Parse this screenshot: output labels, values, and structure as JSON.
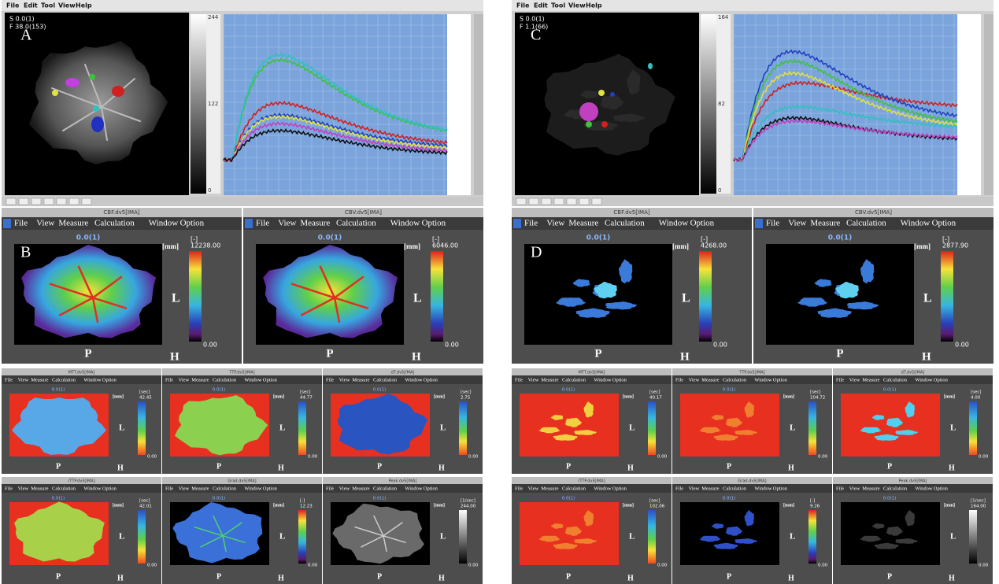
{
  "halves": [
    {
      "top": {
        "label": "A",
        "menu": [
          "File",
          "Edit",
          "Tool",
          "View",
          "Help"
        ],
        "info": [
          "S 0.0(1)",
          "F 38.0(153)"
        ],
        "gray_ticks": [
          "244",
          "122",
          "0"
        ]
      },
      "panel_label": "B",
      "large": [
        {
          "title": "CBF.dv5[IMA]",
          "max": "12238.00"
        },
        {
          "title": "CBV.dv5[IMA]",
          "max": "6046.00"
        }
      ],
      "small": [
        {
          "title": "MTT.dv5[IMA]",
          "unit": "[sec]",
          "max": "42.45"
        },
        {
          "title": "TTP.dv5[IMA]",
          "unit": "[sec]",
          "max": "44.77"
        },
        {
          "title": "dT.dv5[IMA]",
          "unit": "[sec]",
          "max": "2.75"
        },
        {
          "title": "rTTP.dv5[IMA]",
          "unit": "[sec]",
          "max": "42.01"
        },
        {
          "title": "Grad.dv5[IMA]",
          "unit": "[-]",
          "max": "12.23"
        },
        {
          "title": "Peak.dv5[IMA]",
          "unit": "[1/sec]",
          "max": "244.00"
        }
      ]
    },
    {
      "top": {
        "label": "C",
        "menu": [
          "File",
          "Edit",
          "Tool",
          "View",
          "Help"
        ],
        "info": [
          "S 0.0(1)",
          "F 1.1(66)"
        ],
        "gray_ticks": [
          "164",
          "82",
          "0"
        ]
      },
      "panel_label": "D",
      "large": [
        {
          "title": "CBF.dv5[IMA]",
          "max": "4268.00"
        },
        {
          "title": "CBV.dv5[IMA]",
          "max": "2877.90"
        }
      ],
      "small": [
        {
          "title": "MTT.dv5[IMA]",
          "unit": "[sec]",
          "max": "40.17"
        },
        {
          "title": "TTP.dv5[IMA]",
          "unit": "[sec]",
          "max": "104.72"
        },
        {
          "title": "dT.dv5[IMA]",
          "unit": "[sec]",
          "max": "4.00"
        },
        {
          "title": "rTTP.dv5[IMA]",
          "unit": "[sec]",
          "max": "102.06"
        },
        {
          "title": "Grad.dv5[IMA]",
          "unit": "[-]",
          "max": "9.26"
        },
        {
          "title": "Peak.dv5[IMA]",
          "unit": "[1/sec]",
          "max": "164.00"
        }
      ]
    }
  ],
  "map_window": {
    "menu": [
      "File",
      "View",
      "Measure",
      "Calculation",
      "Window",
      "Option"
    ],
    "slice": "0.0(1)",
    "mm": "[mm]",
    "unit": "[-]",
    "min": "0.00",
    "L": "L",
    "P": "P",
    "H": "H"
  }
}
